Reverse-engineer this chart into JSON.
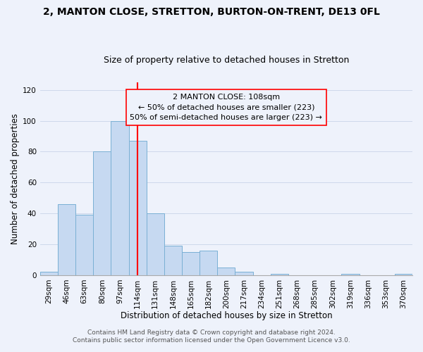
{
  "title": "2, MANTON CLOSE, STRETTON, BURTON-ON-TRENT, DE13 0FL",
  "subtitle": "Size of property relative to detached houses in Stretton",
  "xlabel": "Distribution of detached houses by size in Stretton",
  "ylabel": "Number of detached properties",
  "bar_labels": [
    "29sqm",
    "46sqm",
    "63sqm",
    "80sqm",
    "97sqm",
    "114sqm",
    "131sqm",
    "148sqm",
    "165sqm",
    "182sqm",
    "200sqm",
    "217sqm",
    "234sqm",
    "251sqm",
    "268sqm",
    "285sqm",
    "302sqm",
    "319sqm",
    "336sqm",
    "353sqm",
    "370sqm"
  ],
  "bar_values": [
    2,
    46,
    39,
    80,
    100,
    87,
    40,
    19,
    15,
    16,
    5,
    2,
    0,
    1,
    0,
    0,
    0,
    1,
    0,
    0,
    1
  ],
  "bar_color": "#c6d9f1",
  "bar_edge_color": "#7ab0d4",
  "ylim": [
    0,
    125
  ],
  "yticks": [
    0,
    20,
    40,
    60,
    80,
    100,
    120
  ],
  "red_line_index": 5,
  "annotation_box_text": "2 MANTON CLOSE: 108sqm\n← 50% of detached houses are smaller (223)\n50% of semi-detached houses are larger (223) →",
  "footer_line1": "Contains HM Land Registry data © Crown copyright and database right 2024.",
  "footer_line2": "Contains public sector information licensed under the Open Government Licence v3.0.",
  "title_fontsize": 10,
  "subtitle_fontsize": 9,
  "axis_label_fontsize": 8.5,
  "tick_fontsize": 7.5,
  "annotation_fontsize": 8,
  "footer_fontsize": 6.5,
  "background_color": "#eef2fb"
}
